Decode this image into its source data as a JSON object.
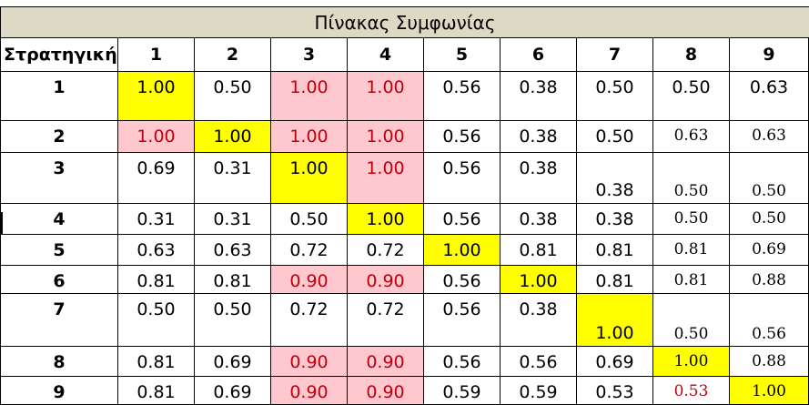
{
  "title": "Πίνακας Συμφωνίας",
  "header_label": "Στρατηγική",
  "columns": [
    "1",
    "2",
    "3",
    "4",
    "5",
    "6",
    "7",
    "8",
    "9"
  ],
  "rows": [
    {
      "label": "1",
      "cells": [
        {
          "v": "1.00",
          "fill": "yellow",
          "color": "black"
        },
        {
          "v": "0.50",
          "fill": "none",
          "color": "black"
        },
        {
          "v": "1.00",
          "fill": "pink",
          "color": "red"
        },
        {
          "v": "1.00",
          "fill": "pink",
          "color": "red"
        },
        {
          "v": "0.56",
          "fill": "none",
          "color": "black"
        },
        {
          "v": "0.38",
          "fill": "none",
          "color": "black"
        },
        {
          "v": "0.50",
          "fill": "none",
          "color": "black"
        },
        {
          "v": "0.50",
          "fill": "none",
          "color": "black"
        },
        {
          "v": "0.63",
          "fill": "none",
          "color": "black"
        }
      ]
    },
    {
      "label": "2",
      "cells": [
        {
          "v": "1.00",
          "fill": "pink",
          "color": "red"
        },
        {
          "v": "1.00",
          "fill": "yellow",
          "color": "black"
        },
        {
          "v": "1.00",
          "fill": "pink",
          "color": "red"
        },
        {
          "v": "1.00",
          "fill": "pink",
          "color": "red"
        },
        {
          "v": "0.56",
          "fill": "none",
          "color": "black"
        },
        {
          "v": "0.38",
          "fill": "none",
          "color": "black"
        },
        {
          "v": "0.50",
          "fill": "none",
          "color": "black"
        },
        {
          "v": "0.63",
          "fill": "none",
          "color": "black",
          "font": "small"
        },
        {
          "v": "0.63",
          "fill": "none",
          "color": "black",
          "font": "small"
        }
      ]
    },
    {
      "label": "3",
      "cells": [
        {
          "v": "0.69",
          "fill": "none",
          "color": "black"
        },
        {
          "v": "0.31",
          "fill": "none",
          "color": "black"
        },
        {
          "v": "1.00",
          "fill": "yellow",
          "color": "black"
        },
        {
          "v": "1.00",
          "fill": "pink",
          "color": "red"
        },
        {
          "v": "0.56",
          "fill": "none",
          "color": "black"
        },
        {
          "v": "0.38",
          "fill": "none",
          "color": "black"
        },
        {
          "v": "0.38",
          "fill": "none",
          "color": "black",
          "align": "bottom"
        },
        {
          "v": "0.50",
          "fill": "none",
          "color": "black",
          "align": "bottom",
          "font": "small"
        },
        {
          "v": "0.50",
          "fill": "none",
          "color": "black",
          "align": "bottom",
          "font": "small"
        }
      ]
    },
    {
      "label": "4",
      "cells": [
        {
          "v": "0.31",
          "fill": "none",
          "color": "black"
        },
        {
          "v": "0.31",
          "fill": "none",
          "color": "black"
        },
        {
          "v": "0.50",
          "fill": "none",
          "color": "black"
        },
        {
          "v": "1.00",
          "fill": "yellow",
          "color": "black"
        },
        {
          "v": "0.56",
          "fill": "none",
          "color": "black"
        },
        {
          "v": "0.38",
          "fill": "none",
          "color": "black"
        },
        {
          "v": "0.38",
          "fill": "none",
          "color": "black"
        },
        {
          "v": "0.50",
          "fill": "none",
          "color": "black",
          "font": "small"
        },
        {
          "v": "0.50",
          "fill": "none",
          "color": "black",
          "font": "small"
        }
      ]
    },
    {
      "label": "5",
      "cells": [
        {
          "v": "0.63",
          "fill": "none",
          "color": "black"
        },
        {
          "v": "0.63",
          "fill": "none",
          "color": "black"
        },
        {
          "v": "0.72",
          "fill": "none",
          "color": "black"
        },
        {
          "v": "0.72",
          "fill": "none",
          "color": "black"
        },
        {
          "v": "1.00",
          "fill": "yellow",
          "color": "black"
        },
        {
          "v": "0.81",
          "fill": "none",
          "color": "black"
        },
        {
          "v": "0.81",
          "fill": "none",
          "color": "black"
        },
        {
          "v": "0.81",
          "fill": "none",
          "color": "black",
          "font": "small"
        },
        {
          "v": "0.69",
          "fill": "none",
          "color": "black",
          "font": "small"
        }
      ]
    },
    {
      "label": "6",
      "cells": [
        {
          "v": "0.81",
          "fill": "none",
          "color": "black"
        },
        {
          "v": "0.81",
          "fill": "none",
          "color": "black"
        },
        {
          "v": "0.90",
          "fill": "pink",
          "color": "red"
        },
        {
          "v": "0.90",
          "fill": "pink",
          "color": "red"
        },
        {
          "v": "0.56",
          "fill": "none",
          "color": "black"
        },
        {
          "v": "1.00",
          "fill": "yellow",
          "color": "black"
        },
        {
          "v": "0.81",
          "fill": "none",
          "color": "black"
        },
        {
          "v": "0.81",
          "fill": "none",
          "color": "black",
          "font": "small"
        },
        {
          "v": "0.88",
          "fill": "none",
          "color": "black",
          "font": "small"
        }
      ]
    },
    {
      "label": "7",
      "cells": [
        {
          "v": "0.50",
          "fill": "none",
          "color": "black"
        },
        {
          "v": "0.50",
          "fill": "none",
          "color": "black"
        },
        {
          "v": "0.72",
          "fill": "none",
          "color": "black"
        },
        {
          "v": "0.72",
          "fill": "none",
          "color": "black"
        },
        {
          "v": "0.56",
          "fill": "none",
          "color": "black"
        },
        {
          "v": "0.38",
          "fill": "none",
          "color": "black"
        },
        {
          "v": "1.00",
          "fill": "yellow",
          "color": "black",
          "align": "bottom"
        },
        {
          "v": "0.50",
          "fill": "none",
          "color": "black",
          "align": "bottom",
          "font": "small"
        },
        {
          "v": "0.56",
          "fill": "none",
          "color": "black",
          "align": "bottom",
          "font": "small"
        }
      ]
    },
    {
      "label": "8",
      "cells": [
        {
          "v": "0.81",
          "fill": "none",
          "color": "black"
        },
        {
          "v": "0.69",
          "fill": "none",
          "color": "black"
        },
        {
          "v": "0.90",
          "fill": "pink",
          "color": "red"
        },
        {
          "v": "0.90",
          "fill": "pink",
          "color": "red"
        },
        {
          "v": "0.56",
          "fill": "none",
          "color": "black"
        },
        {
          "v": "0.56",
          "fill": "none",
          "color": "black"
        },
        {
          "v": "0.69",
          "fill": "none",
          "color": "black"
        },
        {
          "v": "1.00",
          "fill": "yellow",
          "color": "black",
          "font": "small"
        },
        {
          "v": "0.88",
          "fill": "none",
          "color": "black",
          "font": "small"
        }
      ]
    },
    {
      "label": "9",
      "cells": [
        {
          "v": "0.81",
          "fill": "none",
          "color": "black"
        },
        {
          "v": "0.69",
          "fill": "none",
          "color": "black"
        },
        {
          "v": "0.90",
          "fill": "pink",
          "color": "red"
        },
        {
          "v": "0.90",
          "fill": "pink",
          "color": "red"
        },
        {
          "v": "0.59",
          "fill": "none",
          "color": "black"
        },
        {
          "v": "0.59",
          "fill": "none",
          "color": "black"
        },
        {
          "v": "0.53",
          "fill": "none",
          "color": "black"
        },
        {
          "v": "0.53",
          "fill": "none",
          "color": "red",
          "font": "small"
        },
        {
          "v": "1.00",
          "fill": "yellow",
          "color": "black",
          "font": "small"
        }
      ]
    }
  ],
  "colors": {
    "title_bg": "#ddd9c4",
    "diagonal_fill": "#ffff00",
    "highlight_fill": "#ffc7ce",
    "highlight_text": "#c0000f",
    "grid_line": "#000000"
  }
}
